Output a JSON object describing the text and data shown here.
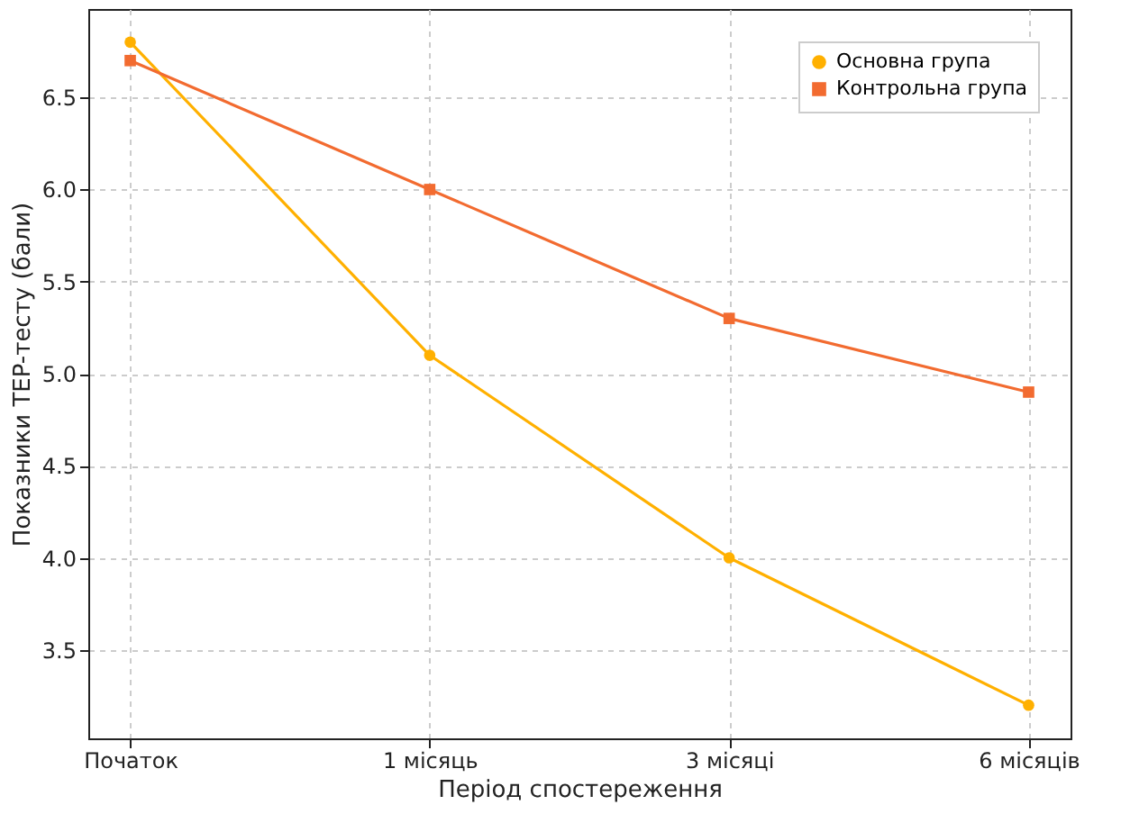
{
  "chart_data": {
    "type": "line",
    "xlabel": "Період спостереження",
    "ylabel": "Показники TEP-тесту (бали)",
    "categories": [
      "Початок",
      "1 місяць",
      "3 місяці",
      "6 місяців"
    ],
    "series": [
      {
        "name": "Основна група",
        "color": "#ffb000",
        "marker": "circle",
        "values": [
          6.8,
          5.1,
          4.0,
          3.2
        ]
      },
      {
        "name": "Контрольна група",
        "color": "#f26b30",
        "marker": "square",
        "values": [
          6.7,
          6.0,
          5.3,
          4.9
        ]
      }
    ],
    "ylim": [
      3.02,
      6.98
    ],
    "yticks": [
      3.5,
      {
        "value": 4,
        "label": "4.0"
      },
      4.5,
      {
        "value": 5,
        "label": "5.0"
      },
      5.5,
      {
        "value": 6,
        "label": "6.0"
      },
      6.5
    ],
    "grid": true,
    "legend": "top right",
    "line_style": "solid"
  }
}
